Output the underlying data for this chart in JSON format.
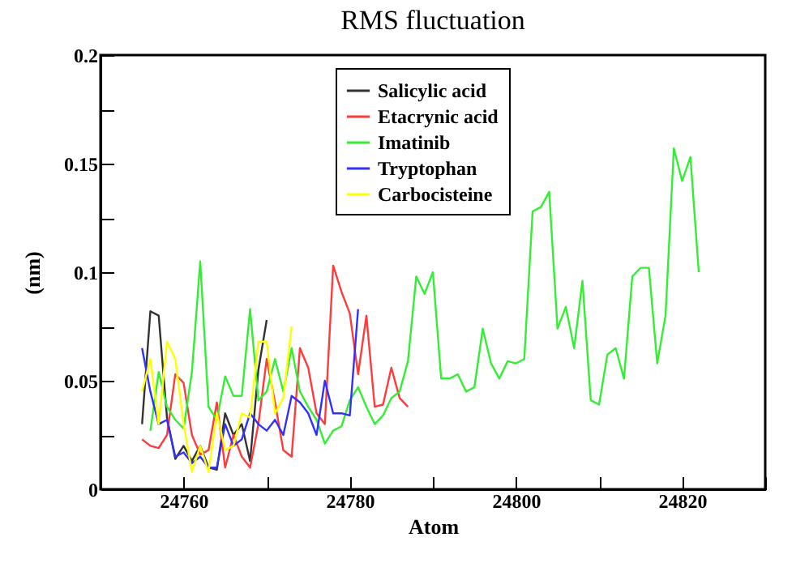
{
  "chart_data": {
    "type": "line",
    "title": "RMS fluctuation",
    "xlabel": "Atom",
    "ylabel": "(nm)",
    "legend": "top",
    "grid": false,
    "marker": "none",
    "line_style": "solid",
    "xlim": [
      24750,
      24830
    ],
    "xticks": [
      {
        "value": 24750,
        "label": null
      },
      24760,
      {
        "value": 24770,
        "label": null
      },
      24780,
      {
        "value": 24790,
        "label": null
      },
      24800,
      {
        "value": 24810,
        "label": null
      },
      24820,
      {
        "value": 24830,
        "label": null
      }
    ],
    "ylim": [
      0,
      0.2
    ],
    "yticks": [
      0,
      {
        "value": 0.025,
        "label": null
      },
      0.05,
      {
        "value": 0.075,
        "label": null
      },
      0.1,
      {
        "value": 0.125,
        "label": null
      },
      0.15,
      {
        "value": 0.175,
        "label": null
      },
      0.2
    ],
    "series": [
      {
        "name": "Salicylic acid",
        "color": "#333333",
        "x": [
          24755,
          24756,
          24757,
          24758,
          24759,
          24760,
          24761,
          24762,
          24763,
          24764,
          24765,
          24766,
          24767,
          24768,
          24769,
          24770
        ],
        "values": [
          0.03,
          0.082,
          0.08,
          0.033,
          0.014,
          0.02,
          0.013,
          0.02,
          0.01,
          0.009,
          0.035,
          0.025,
          0.03,
          0.013,
          0.055,
          0.078
        ]
      },
      {
        "name": "Etacrynic acid",
        "color": "#ff3b3b",
        "x": [
          24755,
          24756,
          24757,
          24758,
          24759,
          24760,
          24761,
          24762,
          24763,
          24764,
          24765,
          24766,
          24767,
          24768,
          24769,
          24770,
          24771,
          24772,
          24773,
          24774,
          24775,
          24776,
          24777,
          24778,
          24779,
          24780,
          24781,
          24782,
          24783,
          24784,
          24785,
          24786,
          24787
        ],
        "values": [
          0.023,
          0.02,
          0.019,
          0.025,
          0.053,
          0.049,
          0.025,
          0.016,
          0.018,
          0.04,
          0.01,
          0.025,
          0.015,
          0.01,
          0.03,
          0.06,
          0.04,
          0.018,
          0.015,
          0.065,
          0.056,
          0.035,
          0.03,
          0.103,
          0.091,
          0.081,
          0.053,
          0.08,
          0.038,
          0.039,
          0.056,
          0.042,
          0.038
        ]
      },
      {
        "name": "Imatinib",
        "color": "#33ee33",
        "x": [
          24756,
          24757,
          24758,
          24759,
          24760,
          24761,
          24762,
          24763,
          24764,
          24765,
          24766,
          24767,
          24768,
          24769,
          24770,
          24771,
          24772,
          24773,
          24774,
          24775,
          24776,
          24777,
          24778,
          24779,
          24780,
          24781,
          24782,
          24783,
          24784,
          24785,
          24786,
          24787,
          24788,
          24789,
          24790,
          24791,
          24792,
          24793,
          24794,
          24795,
          24796,
          24797,
          24798,
          24799,
          24800,
          24801,
          24802,
          24803,
          24804,
          24805,
          24806,
          24807,
          24808,
          24809,
          24810,
          24811,
          24812,
          24813,
          24814,
          24815,
          24816,
          24817,
          24818,
          24819,
          24820,
          24821,
          24822
        ],
        "values": [
          0.027,
          0.054,
          0.038,
          0.032,
          0.028,
          0.054,
          0.105,
          0.038,
          0.032,
          0.052,
          0.043,
          0.043,
          0.083,
          0.041,
          0.045,
          0.06,
          0.045,
          0.065,
          0.045,
          0.038,
          0.032,
          0.021,
          0.027,
          0.029,
          0.041,
          0.047,
          0.038,
          0.03,
          0.034,
          0.042,
          0.045,
          0.059,
          0.098,
          0.09,
          0.1,
          0.051,
          0.051,
          0.053,
          0.045,
          0.047,
          0.074,
          0.058,
          0.051,
          0.059,
          0.058,
          0.06,
          0.128,
          0.13,
          0.137,
          0.074,
          0.084,
          0.065,
          0.096,
          0.041,
          0.039,
          0.062,
          0.065,
          0.051,
          0.098,
          0.102,
          0.102,
          0.058,
          0.08,
          0.157,
          0.142,
          0.153,
          0.1
        ]
      },
      {
        "name": "Tryptophan",
        "color": "#3030ff",
        "x": [
          24755,
          24756,
          24757,
          24758,
          24759,
          24760,
          24761,
          24762,
          24763,
          24764,
          24765,
          24766,
          24767,
          24768,
          24769,
          24770,
          24771,
          24772,
          24773,
          24774,
          24775,
          24776,
          24777,
          24778,
          24779,
          24780,
          24781
        ],
        "values": [
          0.065,
          0.045,
          0.03,
          0.032,
          0.015,
          0.017,
          0.012,
          0.015,
          0.01,
          0.01,
          0.03,
          0.02,
          0.023,
          0.035,
          0.03,
          0.027,
          0.032,
          0.025,
          0.043,
          0.04,
          0.035,
          0.025,
          0.05,
          0.035,
          0.035,
          0.034,
          0.083
        ]
      },
      {
        "name": "Carbocisteine",
        "color": "#ffff00",
        "x": [
          24755,
          24756,
          24757,
          24758,
          24759,
          24760,
          24761,
          24762,
          24763,
          24764,
          24765,
          24766,
          24767,
          24768,
          24769,
          24770,
          24771,
          24772,
          24773
        ],
        "values": [
          0.045,
          0.06,
          0.03,
          0.068,
          0.06,
          0.03,
          0.008,
          0.02,
          0.008,
          0.035,
          0.018,
          0.02,
          0.035,
          0.033,
          0.068,
          0.068,
          0.035,
          0.042,
          0.075
        ]
      }
    ]
  }
}
